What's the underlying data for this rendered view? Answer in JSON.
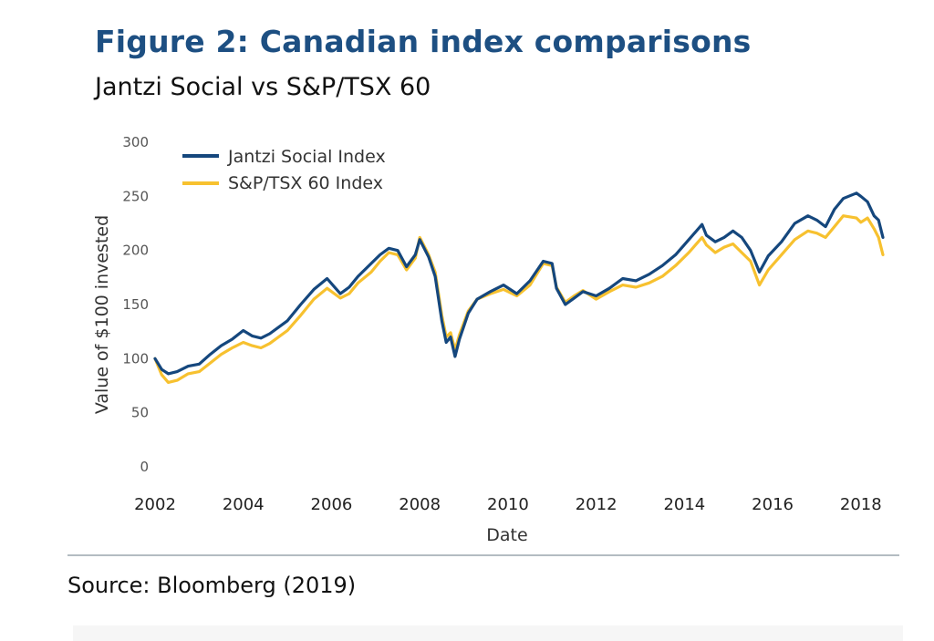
{
  "figure": {
    "title": "Figure 2: Canadian index comparisons",
    "subtitle": "Jantzi Social vs S&P/TSX 60",
    "source": "Source: Bloomberg (2019)"
  },
  "colors": {
    "title": "#1d4f82",
    "jantzi": "#15477d",
    "tsx": "#f7c12f",
    "divider": "#b3bcc2"
  },
  "chart_data": {
    "type": "line",
    "xlabel": "Date",
    "ylabel": "Value of $100 invested",
    "xlim": [
      2002,
      2018.5
    ],
    "ylim": [
      0,
      300
    ],
    "xticks": [
      2002,
      2004,
      2006,
      2008,
      2010,
      2012,
      2014,
      2016,
      2018
    ],
    "xtick_labels": [
      "2002",
      "2004",
      "2006",
      "2008",
      "2010",
      "2012",
      "2014",
      "2016",
      "2018"
    ],
    "yticks": [
      0,
      50,
      100,
      150,
      200,
      250,
      300
    ],
    "ytick_labels": [
      "0",
      "50",
      "100",
      "150",
      "200",
      "250",
      "300"
    ],
    "grid": false,
    "legend": "top-left",
    "x": [
      2002.0,
      2002.15,
      2002.3,
      2002.5,
      2002.75,
      2003.0,
      2003.25,
      2003.5,
      2003.75,
      2004.0,
      2004.2,
      2004.4,
      2004.6,
      2005.0,
      2005.3,
      2005.6,
      2005.9,
      2006.2,
      2006.4,
      2006.6,
      2006.9,
      2007.1,
      2007.3,
      2007.5,
      2007.7,
      2007.9,
      2008.0,
      2008.2,
      2008.35,
      2008.5,
      2008.6,
      2008.7,
      2008.8,
      2008.9,
      2009.1,
      2009.3,
      2009.6,
      2009.9,
      2010.2,
      2010.5,
      2010.8,
      2011.0,
      2011.1,
      2011.3,
      2011.5,
      2011.7,
      2012.0,
      2012.3,
      2012.6,
      2012.9,
      2013.2,
      2013.5,
      2013.8,
      2014.1,
      2014.4,
      2014.5,
      2014.7,
      2014.9,
      2015.1,
      2015.3,
      2015.5,
      2015.7,
      2015.9,
      2016.2,
      2016.5,
      2016.8,
      2017.0,
      2017.2,
      2017.4,
      2017.6,
      2017.9,
      2018.0,
      2018.15,
      2018.3,
      2018.4,
      2018.5
    ],
    "series": [
      {
        "name": "Jantzi Social Index",
        "values": [
          100,
          90,
          86,
          88,
          93,
          95,
          104,
          112,
          118,
          126,
          121,
          119,
          123,
          135,
          150,
          164,
          174,
          160,
          166,
          176,
          188,
          196,
          202,
          200,
          185,
          196,
          210,
          194,
          176,
          135,
          115,
          120,
          102,
          118,
          142,
          155,
          162,
          168,
          160,
          172,
          190,
          188,
          165,
          150,
          156,
          162,
          158,
          165,
          174,
          172,
          178,
          186,
          196,
          210,
          224,
          214,
          208,
          212,
          218,
          212,
          200,
          180,
          195,
          208,
          225,
          232,
          228,
          222,
          238,
          248,
          253,
          250,
          245,
          232,
          228,
          212
        ]
      },
      {
        "name": "S&P/TSX 60 Index",
        "values": [
          100,
          85,
          78,
          80,
          86,
          88,
          96,
          104,
          110,
          115,
          112,
          110,
          114,
          126,
          140,
          155,
          165,
          156,
          160,
          170,
          180,
          190,
          198,
          196,
          182,
          193,
          212,
          196,
          180,
          140,
          120,
          124,
          108,
          122,
          144,
          155,
          160,
          164,
          158,
          168,
          188,
          186,
          166,
          152,
          158,
          163,
          155,
          162,
          168,
          166,
          170,
          176,
          186,
          198,
          212,
          205,
          198,
          203,
          206,
          198,
          190,
          168,
          182,
          196,
          210,
          218,
          216,
          212,
          222,
          232,
          230,
          226,
          230,
          220,
          212,
          196
        ]
      }
    ]
  }
}
